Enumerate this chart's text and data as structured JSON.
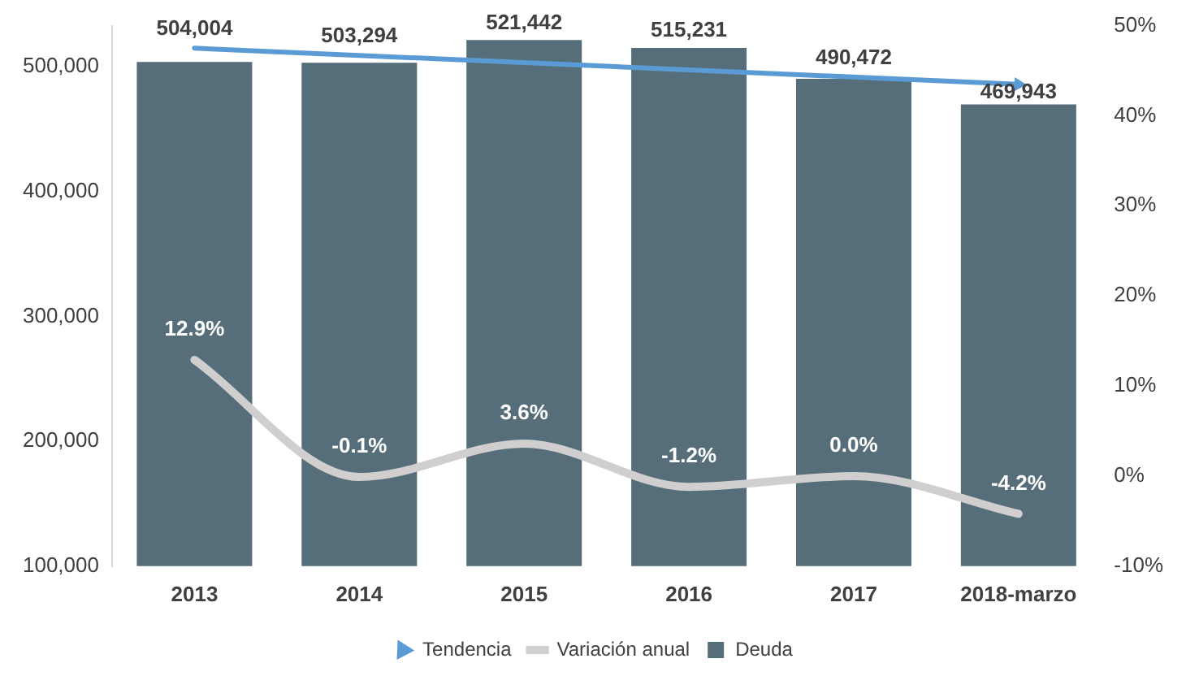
{
  "chart_data": {
    "type": "bar",
    "categories": [
      "2013",
      "2014",
      "2015",
      "2016",
      "2017",
      "2018-marzo"
    ],
    "series": [
      {
        "name": "Deuda",
        "color": "#566e7a",
        "values": [
          504004,
          503294,
          521442,
          515231,
          490472,
          469943
        ],
        "value_labels": [
          "504,004",
          "503,294",
          "521,442",
          "515,231",
          "490,472",
          "469,943"
        ]
      },
      {
        "name": "Variación anual",
        "type": "line",
        "axis": "y2",
        "color": "#d0cece",
        "values": [
          12.9,
          -0.1,
          3.6,
          -1.2,
          0.0,
          -4.2
        ],
        "value_labels": [
          "12.9%",
          "-0.1%",
          "3.6%",
          "-1.2%",
          "0.0%",
          "-4.2%"
        ]
      },
      {
        "name": "Tendencia",
        "type": "line",
        "color": "#5b9bd5",
        "values": [
          515000,
          null,
          null,
          null,
          null,
          486000
        ]
      }
    ],
    "ylim": [
      100000,
      533000
    ],
    "yticks": [
      {
        "value": 100000,
        "label": "100,000"
      },
      {
        "value": 200000,
        "label": "200,000"
      },
      {
        "value": 300000,
        "label": "300,000"
      },
      {
        "value": 400000,
        "label": "400,000"
      },
      {
        "value": 500000,
        "label": "500,000"
      }
    ],
    "y2lim": [
      -10,
      50
    ],
    "y2ticks": [
      {
        "value": -10,
        "label": "-10%"
      },
      {
        "value": 0,
        "label": "0%"
      },
      {
        "value": 10,
        "label": "10%"
      },
      {
        "value": 20,
        "label": "20%"
      },
      {
        "value": 30,
        "label": "30%"
      },
      {
        "value": 40,
        "label": "40%"
      },
      {
        "value": 50,
        "label": "50%"
      }
    ],
    "grid": false,
    "legend": "bottom"
  }
}
